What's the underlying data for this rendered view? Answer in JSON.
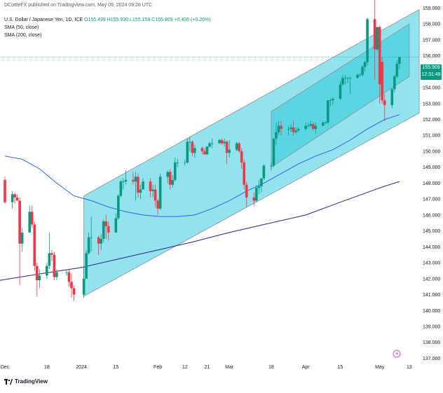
{
  "header": {
    "published": "DCottleFX published on TradingView.com, May 09, 2024 09:28 UTC",
    "instrument": "U.S. Dollar / Japanese Yen, 1D, ICE",
    "ohlc": "O155.499 H155.930 L155.159 C155.909",
    "change": "+0.406 (+0.26%)",
    "sma50": "SMA (50, close)",
    "sma200": "SMA (200, close)"
  },
  "last_price": {
    "value": "155.909",
    "countdown": "12:31:48",
    "color": "#089981"
  },
  "footer": {
    "logo_text": "TradingView"
  },
  "colors": {
    "up": "#089981",
    "down": "#f23645",
    "sma50": "#2962ff",
    "sma200": "#311b92",
    "channel_fill": "#7fdeea",
    "channel_inner_fill": "#2ecbd8",
    "axis_text": "#131722"
  },
  "chart_data": {
    "type": "candlestick",
    "title": "U.S. Dollar / Japanese Yen, 1D, ICE",
    "y_ticks": [
      "159.000",
      "158.000",
      "157.000",
      "156.000",
      "155.000",
      "154.000",
      "153.000",
      "152.000",
      "151.000",
      "150.000",
      "149.000",
      "148.000",
      "147.000",
      "146.000",
      "145.000",
      "144.000",
      "143.000",
      "142.000",
      "141.000",
      "140.000",
      "139.000",
      "138.000",
      "137.000"
    ],
    "x_ticks": [
      {
        "label": "Dec",
        "date": "2023-12-01"
      },
      {
        "label": "18",
        "date": "2023-12-18"
      },
      {
        "label": "2024",
        "date": "2024-01-01"
      },
      {
        "label": "15",
        "date": "2024-01-15"
      },
      {
        "label": "Feb",
        "date": "2024-02-01"
      },
      {
        "label": "12",
        "date": "2024-02-12"
      },
      {
        "label": "21",
        "date": "2024-02-21"
      },
      {
        "label": "Mar",
        "date": "2024-03-01"
      },
      {
        "label": "18",
        "date": "2024-03-18"
      },
      {
        "label": "Apr",
        "date": "2024-04-01"
      },
      {
        "label": "15",
        "date": "2024-04-15"
      },
      {
        "label": "May",
        "date": "2024-05-01"
      },
      {
        "label": "13",
        "date": "2024-05-13"
      }
    ],
    "ylim": [
      136.8,
      159.5
    ],
    "xlim": [
      "2023-11-29",
      "2024-05-17"
    ],
    "grid": false,
    "candles": [
      {
        "date": "2023-12-01",
        "o": 148.2,
        "h": 148.4,
        "l": 146.7,
        "c": 146.8
      },
      {
        "date": "2023-12-04",
        "o": 146.8,
        "h": 147.5,
        "l": 146.4,
        "c": 147.3
      },
      {
        "date": "2023-12-05",
        "o": 147.3,
        "h": 147.4,
        "l": 146.7,
        "c": 147.1
      },
      {
        "date": "2023-12-06",
        "o": 147.1,
        "h": 147.3,
        "l": 146.9,
        "c": 146.9
      },
      {
        "date": "2023-12-07",
        "o": 146.9,
        "h": 147.1,
        "l": 141.6,
        "c": 144.2
      },
      {
        "date": "2023-12-08",
        "o": 144.2,
        "h": 145.2,
        "l": 143.7,
        "c": 144.9
      },
      {
        "date": "2023-12-11",
        "o": 144.9,
        "h": 146.6,
        "l": 144.9,
        "c": 146.2
      },
      {
        "date": "2023-12-12",
        "o": 146.2,
        "h": 146.6,
        "l": 145.2,
        "c": 145.4
      },
      {
        "date": "2023-12-13",
        "o": 145.4,
        "h": 145.6,
        "l": 142.5,
        "c": 142.8
      },
      {
        "date": "2023-12-14",
        "o": 142.8,
        "h": 143.0,
        "l": 140.9,
        "c": 141.9
      },
      {
        "date": "2023-12-15",
        "o": 141.9,
        "h": 142.6,
        "l": 141.4,
        "c": 142.2
      },
      {
        "date": "2023-12-18",
        "o": 142.2,
        "h": 143.0,
        "l": 142.0,
        "c": 142.8
      },
      {
        "date": "2023-12-19",
        "o": 142.8,
        "h": 144.9,
        "l": 142.6,
        "c": 143.6
      },
      {
        "date": "2023-12-20",
        "o": 143.6,
        "h": 143.8,
        "l": 143.1,
        "c": 143.5
      },
      {
        "date": "2023-12-21",
        "o": 143.5,
        "h": 143.7,
        "l": 141.9,
        "c": 142.1
      },
      {
        "date": "2023-12-22",
        "o": 142.1,
        "h": 142.6,
        "l": 141.9,
        "c": 142.4
      },
      {
        "date": "2023-12-26",
        "o": 142.4,
        "h": 142.6,
        "l": 142.2,
        "c": 142.4
      },
      {
        "date": "2023-12-27",
        "o": 142.4,
        "h": 142.6,
        "l": 141.5,
        "c": 141.8
      },
      {
        "date": "2023-12-28",
        "o": 141.8,
        "h": 142.3,
        "l": 140.8,
        "c": 141.4
      },
      {
        "date": "2023-12-29",
        "o": 141.4,
        "h": 141.6,
        "l": 140.6,
        "c": 141.0
      },
      {
        "date": "2024-01-02",
        "o": 141.0,
        "h": 142.7,
        "l": 140.8,
        "c": 142.0
      },
      {
        "date": "2024-01-03",
        "o": 142.0,
        "h": 143.8,
        "l": 142.0,
        "c": 143.6
      },
      {
        "date": "2024-01-04",
        "o": 143.6,
        "h": 144.9,
        "l": 143.5,
        "c": 144.6
      },
      {
        "date": "2024-01-05",
        "o": 144.6,
        "h": 145.9,
        "l": 143.7,
        "c": 144.6
      },
      {
        "date": "2024-01-08",
        "o": 144.6,
        "h": 144.7,
        "l": 143.5,
        "c": 144.2
      },
      {
        "date": "2024-01-09",
        "o": 144.2,
        "h": 144.8,
        "l": 143.8,
        "c": 144.5
      },
      {
        "date": "2024-01-10",
        "o": 144.5,
        "h": 145.7,
        "l": 144.3,
        "c": 145.6
      },
      {
        "date": "2024-01-11",
        "o": 145.6,
        "h": 146.0,
        "l": 144.5,
        "c": 145.3
      },
      {
        "date": "2024-01-12",
        "o": 145.3,
        "h": 145.6,
        "l": 144.4,
        "c": 144.9
      },
      {
        "date": "2024-01-15",
        "o": 144.9,
        "h": 146.1,
        "l": 144.9,
        "c": 145.8
      },
      {
        "date": "2024-01-16",
        "o": 145.8,
        "h": 147.3,
        "l": 145.7,
        "c": 147.2
      },
      {
        "date": "2024-01-17",
        "o": 147.2,
        "h": 148.2,
        "l": 147.1,
        "c": 148.1
      },
      {
        "date": "2024-01-18",
        "o": 148.1,
        "h": 148.3,
        "l": 147.6,
        "c": 148.1
      },
      {
        "date": "2024-01-19",
        "o": 148.1,
        "h": 148.8,
        "l": 147.9,
        "c": 148.2
      },
      {
        "date": "2024-01-22",
        "o": 148.2,
        "h": 148.7,
        "l": 147.9,
        "c": 148.1
      },
      {
        "date": "2024-01-23",
        "o": 148.1,
        "h": 148.7,
        "l": 146.9,
        "c": 148.4
      },
      {
        "date": "2024-01-24",
        "o": 148.4,
        "h": 148.6,
        "l": 147.1,
        "c": 147.4
      },
      {
        "date": "2024-01-25",
        "o": 147.4,
        "h": 147.9,
        "l": 147.0,
        "c": 147.6
      },
      {
        "date": "2024-01-26",
        "o": 147.6,
        "h": 148.3,
        "l": 147.6,
        "c": 148.1
      },
      {
        "date": "2024-01-29",
        "o": 148.1,
        "h": 148.3,
        "l": 147.1,
        "c": 147.5
      },
      {
        "date": "2024-01-30",
        "o": 147.5,
        "h": 147.9,
        "l": 147.1,
        "c": 147.6
      },
      {
        "date": "2024-01-31",
        "o": 147.6,
        "h": 147.9,
        "l": 146.5,
        "c": 146.9
      },
      {
        "date": "2024-02-01",
        "o": 146.9,
        "h": 147.0,
        "l": 146.0,
        "c": 146.4
      },
      {
        "date": "2024-02-02",
        "o": 146.4,
        "h": 148.6,
        "l": 146.3,
        "c": 148.4
      },
      {
        "date": "2024-02-05",
        "o": 148.4,
        "h": 148.8,
        "l": 148.0,
        "c": 148.7
      },
      {
        "date": "2024-02-06",
        "o": 148.7,
        "h": 148.9,
        "l": 147.6,
        "c": 147.9
      },
      {
        "date": "2024-02-07",
        "o": 147.9,
        "h": 148.5,
        "l": 147.7,
        "c": 148.2
      },
      {
        "date": "2024-02-08",
        "o": 148.2,
        "h": 149.6,
        "l": 148.1,
        "c": 149.3
      },
      {
        "date": "2024-02-09",
        "o": 149.3,
        "h": 149.5,
        "l": 149.0,
        "c": 149.3
      },
      {
        "date": "2024-02-12",
        "o": 149.3,
        "h": 149.5,
        "l": 149.1,
        "c": 149.3
      },
      {
        "date": "2024-02-13",
        "o": 149.3,
        "h": 150.8,
        "l": 149.2,
        "c": 150.6
      },
      {
        "date": "2024-02-14",
        "o": 150.6,
        "h": 150.9,
        "l": 150.0,
        "c": 150.6
      },
      {
        "date": "2024-02-15",
        "o": 150.6,
        "h": 150.7,
        "l": 149.7,
        "c": 149.9
      },
      {
        "date": "2024-02-16",
        "o": 149.9,
        "h": 150.4,
        "l": 149.6,
        "c": 150.2
      },
      {
        "date": "2024-02-19",
        "o": 150.2,
        "h": 150.3,
        "l": 149.8,
        "c": 150.0
      },
      {
        "date": "2024-02-20",
        "o": 150.0,
        "h": 150.2,
        "l": 149.8,
        "c": 149.8
      },
      {
        "date": "2024-02-21",
        "o": 149.8,
        "h": 150.3,
        "l": 149.8,
        "c": 150.3
      },
      {
        "date": "2024-02-22",
        "o": 150.3,
        "h": 150.6,
        "l": 150.2,
        "c": 150.5
      },
      {
        "date": "2024-02-23",
        "o": 150.5,
        "h": 150.8,
        "l": 150.2,
        "c": 150.5
      },
      {
        "date": "2024-02-26",
        "o": 150.5,
        "h": 150.8,
        "l": 150.5,
        "c": 150.7
      },
      {
        "date": "2024-02-27",
        "o": 150.7,
        "h": 150.8,
        "l": 150.4,
        "c": 150.5
      },
      {
        "date": "2024-02-28",
        "o": 150.5,
        "h": 150.8,
        "l": 150.3,
        "c": 150.6
      },
      {
        "date": "2024-02-29",
        "o": 150.6,
        "h": 150.7,
        "l": 149.2,
        "c": 149.9
      },
      {
        "date": "2024-03-01",
        "o": 149.9,
        "h": 150.7,
        "l": 149.6,
        "c": 150.1
      },
      {
        "date": "2024-03-04",
        "o": 150.1,
        "h": 150.6,
        "l": 150.0,
        "c": 150.5
      },
      {
        "date": "2024-03-05",
        "o": 150.5,
        "h": 150.6,
        "l": 149.9,
        "c": 150.0
      },
      {
        "date": "2024-03-06",
        "o": 150.0,
        "h": 150.2,
        "l": 148.9,
        "c": 149.3
      },
      {
        "date": "2024-03-07",
        "o": 149.3,
        "h": 149.5,
        "l": 147.6,
        "c": 147.9
      },
      {
        "date": "2024-03-08",
        "o": 147.9,
        "h": 148.1,
        "l": 146.5,
        "c": 147.1
      },
      {
        "date": "2024-03-11",
        "o": 147.1,
        "h": 147.4,
        "l": 146.6,
        "c": 146.9
      },
      {
        "date": "2024-03-12",
        "o": 146.9,
        "h": 147.9,
        "l": 146.8,
        "c": 147.7
      },
      {
        "date": "2024-03-13",
        "o": 147.7,
        "h": 148.2,
        "l": 147.3,
        "c": 147.8
      },
      {
        "date": "2024-03-14",
        "o": 147.8,
        "h": 148.3,
        "l": 147.4,
        "c": 148.3
      },
      {
        "date": "2024-03-15",
        "o": 148.3,
        "h": 149.2,
        "l": 148.2,
        "c": 149.1
      },
      {
        "date": "2024-03-18",
        "o": 149.1,
        "h": 149.3,
        "l": 148.8,
        "c": 149.1
      },
      {
        "date": "2024-03-19",
        "o": 149.1,
        "h": 150.8,
        "l": 149.0,
        "c": 150.8
      },
      {
        "date": "2024-03-20",
        "o": 150.8,
        "h": 151.8,
        "l": 150.4,
        "c": 151.2
      },
      {
        "date": "2024-03-21",
        "o": 151.2,
        "h": 151.9,
        "l": 151.0,
        "c": 151.6
      },
      {
        "date": "2024-03-22",
        "o": 151.6,
        "h": 151.9,
        "l": 151.0,
        "c": 151.4
      },
      {
        "date": "2024-03-25",
        "o": 151.4,
        "h": 151.6,
        "l": 151.0,
        "c": 151.4
      },
      {
        "date": "2024-03-26",
        "o": 151.4,
        "h": 151.7,
        "l": 151.2,
        "c": 151.5
      },
      {
        "date": "2024-03-27",
        "o": 151.5,
        "h": 151.9,
        "l": 151.0,
        "c": 151.2
      },
      {
        "date": "2024-03-28",
        "o": 151.2,
        "h": 151.5,
        "l": 151.1,
        "c": 151.3
      },
      {
        "date": "2024-03-29",
        "o": 151.3,
        "h": 151.5,
        "l": 151.2,
        "c": 151.4
      },
      {
        "date": "2024-04-01",
        "o": 151.4,
        "h": 151.8,
        "l": 151.3,
        "c": 151.6
      },
      {
        "date": "2024-04-02",
        "o": 151.6,
        "h": 151.8,
        "l": 151.5,
        "c": 151.6
      },
      {
        "date": "2024-04-03",
        "o": 151.6,
        "h": 151.9,
        "l": 151.5,
        "c": 151.7
      },
      {
        "date": "2024-04-04",
        "o": 151.7,
        "h": 151.8,
        "l": 151.3,
        "c": 151.4
      },
      {
        "date": "2024-04-05",
        "o": 151.4,
        "h": 151.8,
        "l": 151.1,
        "c": 151.6
      },
      {
        "date": "2024-04-08",
        "o": 151.6,
        "h": 151.9,
        "l": 151.6,
        "c": 151.8
      },
      {
        "date": "2024-04-09",
        "o": 151.8,
        "h": 151.9,
        "l": 151.7,
        "c": 151.8
      },
      {
        "date": "2024-04-10",
        "o": 151.8,
        "h": 153.2,
        "l": 151.7,
        "c": 153.2
      },
      {
        "date": "2024-04-11",
        "o": 153.2,
        "h": 153.3,
        "l": 152.8,
        "c": 153.2
      },
      {
        "date": "2024-04-12",
        "o": 153.2,
        "h": 153.4,
        "l": 152.9,
        "c": 153.3
      },
      {
        "date": "2024-04-15",
        "o": 153.3,
        "h": 154.4,
        "l": 153.2,
        "c": 154.2
      },
      {
        "date": "2024-04-16",
        "o": 154.2,
        "h": 154.8,
        "l": 154.1,
        "c": 154.6
      },
      {
        "date": "2024-04-17",
        "o": 154.6,
        "h": 154.8,
        "l": 154.2,
        "c": 154.6
      },
      {
        "date": "2024-04-18",
        "o": 154.6,
        "h": 154.7,
        "l": 154.3,
        "c": 154.6
      },
      {
        "date": "2024-04-19",
        "o": 154.6,
        "h": 154.7,
        "l": 153.6,
        "c": 154.6
      },
      {
        "date": "2024-04-22",
        "o": 154.6,
        "h": 154.9,
        "l": 154.6,
        "c": 154.8
      },
      {
        "date": "2024-04-23",
        "o": 154.8,
        "h": 154.9,
        "l": 154.7,
        "c": 154.8
      },
      {
        "date": "2024-04-24",
        "o": 154.8,
        "h": 155.4,
        "l": 154.7,
        "c": 155.3
      },
      {
        "date": "2024-04-25",
        "o": 155.3,
        "h": 155.7,
        "l": 155.0,
        "c": 155.6
      },
      {
        "date": "2024-04-26",
        "o": 155.6,
        "h": 158.4,
        "l": 155.4,
        "c": 158.3
      },
      {
        "date": "2024-04-29",
        "o": 158.3,
        "h": 160.2,
        "l": 154.5,
        "c": 156.4
      },
      {
        "date": "2024-04-30",
        "o": 156.4,
        "h": 157.8,
        "l": 156.3,
        "c": 157.8
      },
      {
        "date": "2024-05-01",
        "o": 157.8,
        "h": 157.9,
        "l": 153.0,
        "c": 154.2
      },
      {
        "date": "2024-05-02",
        "o": 155.6,
        "h": 155.9,
        "l": 153.0,
        "c": 153.2
      },
      {
        "date": "2024-05-03",
        "o": 153.2,
        "h": 153.6,
        "l": 151.9,
        "c": 152.9
      },
      {
        "date": "2024-05-06",
        "o": 152.9,
        "h": 154.0,
        "l": 152.7,
        "c": 153.9
      },
      {
        "date": "2024-05-07",
        "o": 153.9,
        "h": 154.8,
        "l": 153.7,
        "c": 154.7
      },
      {
        "date": "2024-05-08",
        "o": 154.7,
        "h": 155.7,
        "l": 154.6,
        "c": 155.5
      },
      {
        "date": "2024-05-09",
        "o": 155.499,
        "h": 155.93,
        "l": 155.159,
        "c": 155.909
      }
    ],
    "series": [
      {
        "name": "SMA (50, close)",
        "type": "line",
        "color": "#2962ff",
        "points": [
          [
            "2023-12-01",
            149.7
          ],
          [
            "2023-12-08",
            149.5
          ],
          [
            "2023-12-15",
            148.9
          ],
          [
            "2023-12-22",
            148.0
          ],
          [
            "2023-12-29",
            147.2
          ],
          [
            "2024-01-05",
            146.9
          ],
          [
            "2024-01-12",
            146.5
          ],
          [
            "2024-01-19",
            146.2
          ],
          [
            "2024-01-26",
            146.0
          ],
          [
            "2024-02-02",
            145.9
          ],
          [
            "2024-02-09",
            145.9
          ],
          [
            "2024-02-16",
            146.0
          ],
          [
            "2024-02-23",
            146.4
          ],
          [
            "2024-03-01",
            146.9
          ],
          [
            "2024-03-08",
            147.5
          ],
          [
            "2024-03-15",
            148.0
          ],
          [
            "2024-03-22",
            148.6
          ],
          [
            "2024-03-29",
            149.2
          ],
          [
            "2024-04-05",
            149.7
          ],
          [
            "2024-04-12",
            150.1
          ],
          [
            "2024-04-19",
            150.7
          ],
          [
            "2024-04-26",
            151.4
          ],
          [
            "2024-05-03",
            152.0
          ],
          [
            "2024-05-09",
            152.3
          ]
        ]
      },
      {
        "name": "SMA (200, close)",
        "type": "line",
        "color": "#311b92",
        "points": [
          [
            "2023-11-29",
            141.9
          ],
          [
            "2023-12-15",
            142.3
          ],
          [
            "2024-01-01",
            142.7
          ],
          [
            "2024-01-15",
            143.2
          ],
          [
            "2024-02-01",
            143.8
          ],
          [
            "2024-02-15",
            144.3
          ],
          [
            "2024-03-01",
            144.9
          ],
          [
            "2024-03-15",
            145.4
          ],
          [
            "2024-04-01",
            146.0
          ],
          [
            "2024-04-15",
            146.8
          ],
          [
            "2024-05-01",
            147.7
          ],
          [
            "2024-05-09",
            148.1
          ]
        ]
      }
    ],
    "channels": [
      {
        "name": "outer",
        "color": "#7fdeea",
        "start": "2024-01-02",
        "end": "2024-05-17",
        "lower_start": 140.9,
        "lower_end": 152.4,
        "upper_start": 147.2,
        "upper_end": 158.9
      },
      {
        "name": "inner",
        "color": "#2ecbd8",
        "start": "2024-03-18",
        "end": "2024-05-13",
        "lower_start": 149.0,
        "lower_end": 154.7,
        "upper_start": 152.5,
        "upper_end": 158.0
      }
    ],
    "last_price_line": 155.909
  }
}
